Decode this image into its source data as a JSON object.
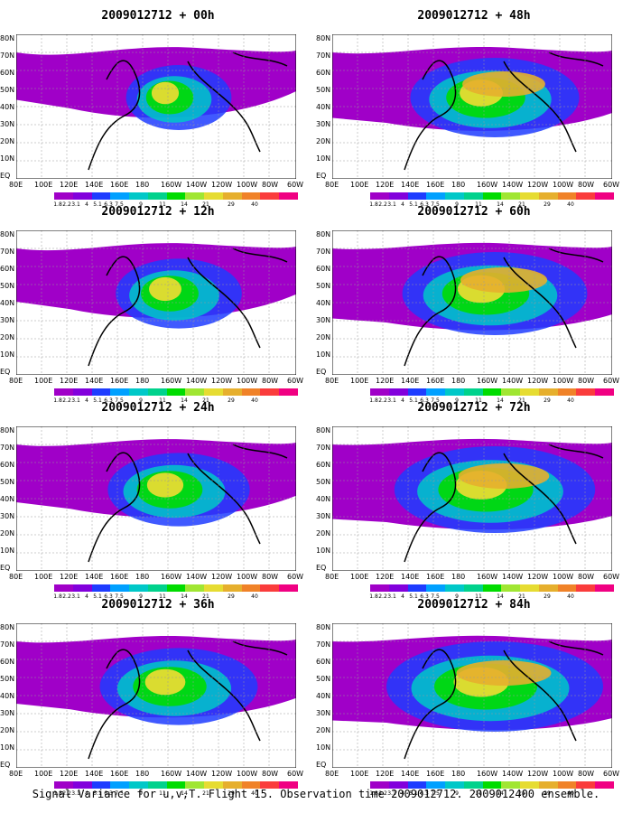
{
  "panels": [
    {
      "title": "2009012712 + 00h",
      "level": 0.05
    },
    {
      "title": "2009012712 + 12h",
      "level": 0.18
    },
    {
      "title": "2009012712 + 24h",
      "level": 0.28
    },
    {
      "title": "2009012712 + 36h",
      "level": 0.38
    },
    {
      "title": "2009012712 + 48h",
      "level": 0.45
    },
    {
      "title": "2009012712 + 60h",
      "level": 0.55
    },
    {
      "title": "2009012712 + 72h",
      "level": 0.65
    },
    {
      "title": "2009012712 + 84h",
      "level": 0.75
    }
  ],
  "lat_labels": [
    "80N",
    "70N",
    "60N",
    "50N",
    "40N",
    "30N",
    "20N",
    "10N",
    "EQ"
  ],
  "lon_labels": [
    "80E",
    "100E",
    "120E",
    "140E",
    "160E",
    "180",
    "160W",
    "140W",
    "120W",
    "100W",
    "80W",
    "60W"
  ],
  "colorbar": {
    "colors": [
      "#a000c8",
      "#8200dc",
      "#1e3cff",
      "#00a0ff",
      "#00c8c8",
      "#00d28c",
      "#00dc00",
      "#a0e632",
      "#e6dc32",
      "#e6af2d",
      "#f08228",
      "#fa3c3c",
      "#f00082"
    ],
    "labels": [
      "1.8",
      "2.2",
      "3.1",
      "4",
      "5.1",
      "6.3",
      "7.5",
      "9",
      "11",
      "14",
      "21",
      "29",
      "40"
    ]
  },
  "footer": "Signal Variance for u,v,T. Flight 15. Observation time 2009012712. 2009012400 ensemble."
}
